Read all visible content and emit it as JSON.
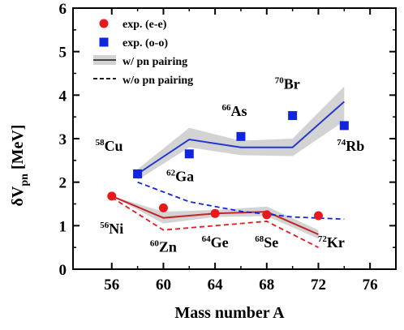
{
  "chart_data": {
    "type": "line",
    "xlabel": "Mass number A",
    "ylabel_main": "δV",
    "ylabel_sub": "pn",
    "ylabel_unit": " [MeV]",
    "xlim": [
      53,
      78
    ],
    "ylim": [
      0,
      6
    ],
    "x_ticks": [
      "56",
      "60",
      "64",
      "68",
      "72",
      "76"
    ],
    "y_ticks": [
      "0",
      "1",
      "2",
      "3",
      "4",
      "5",
      "6"
    ],
    "legend": {
      "position": "top-left",
      "items": [
        {
          "label": "exp. (e-e)",
          "marker": "circle",
          "color": "#e8191b"
        },
        {
          "label": "exp. (o-o)",
          "marker": "square",
          "color": "#1124e0"
        },
        {
          "label": "w/ pn pairing",
          "style": "solid band",
          "color": "#444444"
        },
        {
          "label": "w/o pn pairing",
          "style": "dashed",
          "color": "#000000"
        }
      ]
    },
    "series": [
      {
        "marker": "circle",
        "color": "#e8191b",
        "points": [
          [
            56,
            1.68
          ],
          [
            60,
            1.41
          ],
          [
            64,
            1.28
          ],
          [
            68,
            1.25
          ],
          [
            72,
            1.23
          ]
        ]
      },
      {
        "marker": "square",
        "color": "#1124e0",
        "points": [
          [
            58,
            2.19
          ],
          [
            62,
            2.65
          ],
          [
            66,
            3.05
          ],
          [
            70,
            3.53
          ],
          [
            74,
            3.3
          ]
        ]
      },
      {
        "style": "solid",
        "color": "#c0282a",
        "points": [
          [
            56,
            1.68
          ],
          [
            60,
            1.18
          ],
          [
            64,
            1.28
          ],
          [
            68,
            1.32
          ],
          [
            72,
            0.8
          ]
        ]
      },
      {
        "style": "band",
        "color": "#d3d3d3",
        "points": [
          [
            56,
            1.68,
            1.68
          ],
          [
            60,
            1.05,
            1.32
          ],
          [
            64,
            1.2,
            1.36
          ],
          [
            68,
            1.22,
            1.44
          ],
          [
            72,
            0.7,
            0.9
          ]
        ]
      },
      {
        "style": "dashed",
        "color": "#e8191b",
        "points": [
          [
            56,
            1.65
          ],
          [
            60,
            0.9
          ],
          [
            64,
            1.0
          ],
          [
            68,
            1.1
          ],
          [
            72,
            0.5
          ]
        ]
      },
      {
        "style": "solid",
        "color": "#2438d0",
        "points": [
          [
            58,
            2.19
          ],
          [
            62,
            2.98
          ],
          [
            66,
            2.8
          ],
          [
            70,
            2.8
          ],
          [
            74,
            3.85
          ]
        ]
      },
      {
        "style": "band",
        "color": "#d3d3d3",
        "points": [
          [
            58,
            2.05,
            2.3
          ],
          [
            62,
            2.8,
            3.25
          ],
          [
            66,
            2.62,
            2.95
          ],
          [
            70,
            2.6,
            3.0
          ],
          [
            74,
            3.4,
            4.2
          ]
        ]
      },
      {
        "style": "dashed",
        "color": "#1124e0",
        "points": [
          [
            58,
            2.0
          ],
          [
            62,
            1.55
          ],
          [
            66,
            1.33
          ],
          [
            70,
            1.2
          ],
          [
            74,
            1.15
          ]
        ]
      }
    ],
    "annotations": [
      {
        "sup": "56",
        "base": "Ni",
        "x": 56.0,
        "y": 0.82
      },
      {
        "sup": "58",
        "base": "Cu",
        "x": 55.8,
        "y": 2.72
      },
      {
        "sup": "60",
        "base": "Zn",
        "x": 60.0,
        "y": 0.4
      },
      {
        "sup": "62",
        "base": "Ga",
        "x": 61.3,
        "y": 2.02
      },
      {
        "sup": "64",
        "base": "Ge",
        "x": 64.0,
        "y": 0.5
      },
      {
        "sup": "66",
        "base": "As",
        "x": 65.5,
        "y": 3.52
      },
      {
        "sup": "68",
        "base": "Se",
        "x": 68.0,
        "y": 0.5
      },
      {
        "sup": "70",
        "base": "Br",
        "x": 69.6,
        "y": 4.15
      },
      {
        "sup": "72",
        "base": "Kr",
        "x": 73.0,
        "y": 0.5
      },
      {
        "sup": "74",
        "base": "Rb",
        "x": 74.5,
        "y": 2.72
      }
    ]
  }
}
